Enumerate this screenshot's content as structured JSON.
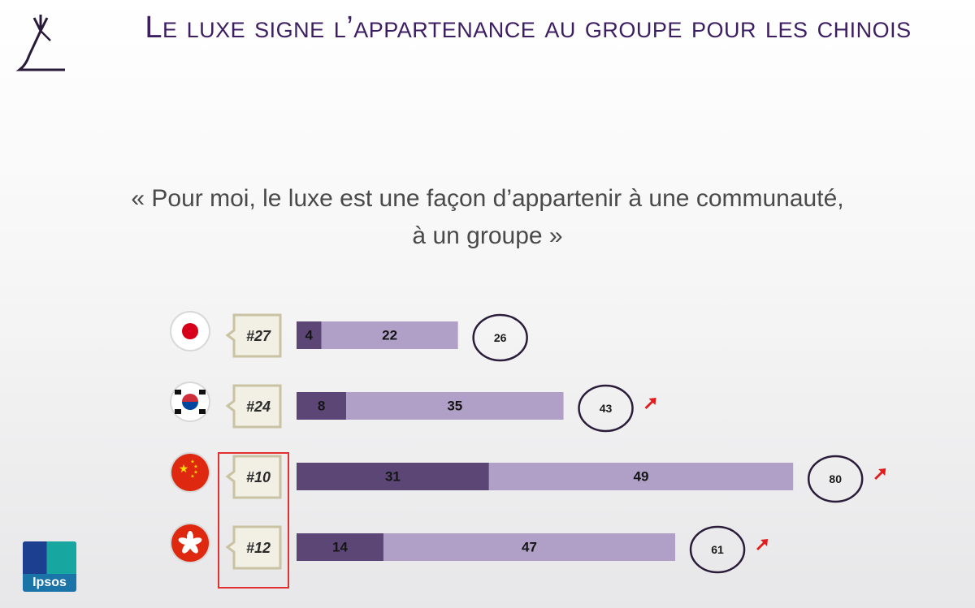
{
  "title": "Le luxe signe l’appartenance au groupe pour les chinois",
  "quote_line1": "« Pour moi, le luxe est une façon d’appartenir à une communauté,",
  "quote_line2": "à un groupe  »",
  "brand": "Ipsos",
  "colors": {
    "dark_bar": "#5b4675",
    "light_bar": "#b0a0c8",
    "circle_stroke": "#2b1c3a",
    "highlight": "#e23030",
    "arrow": "#e41b1b",
    "title": "#3d1e63"
  },
  "chart_data": {
    "type": "bar",
    "orientation": "horizontal",
    "stacked": true,
    "categories": [
      "Japan",
      "South Korea",
      "China",
      "Hong Kong"
    ],
    "ranks": [
      "#27",
      "#24",
      "#10",
      "#12"
    ],
    "series": [
      {
        "values": [
          4,
          8,
          31,
          14
        ]
      },
      {
        "values": [
          22,
          35,
          49,
          47
        ]
      }
    ],
    "totals": [
      26,
      43,
      80,
      61
    ],
    "trend_arrow": [
      false,
      true,
      true,
      true
    ],
    "highlighted": [
      "China",
      "Hong Kong"
    ],
    "icons": [
      "japan-flag-icon",
      "korea-flag-icon",
      "china-flag-icon",
      "hong-kong-flag-icon"
    ]
  }
}
